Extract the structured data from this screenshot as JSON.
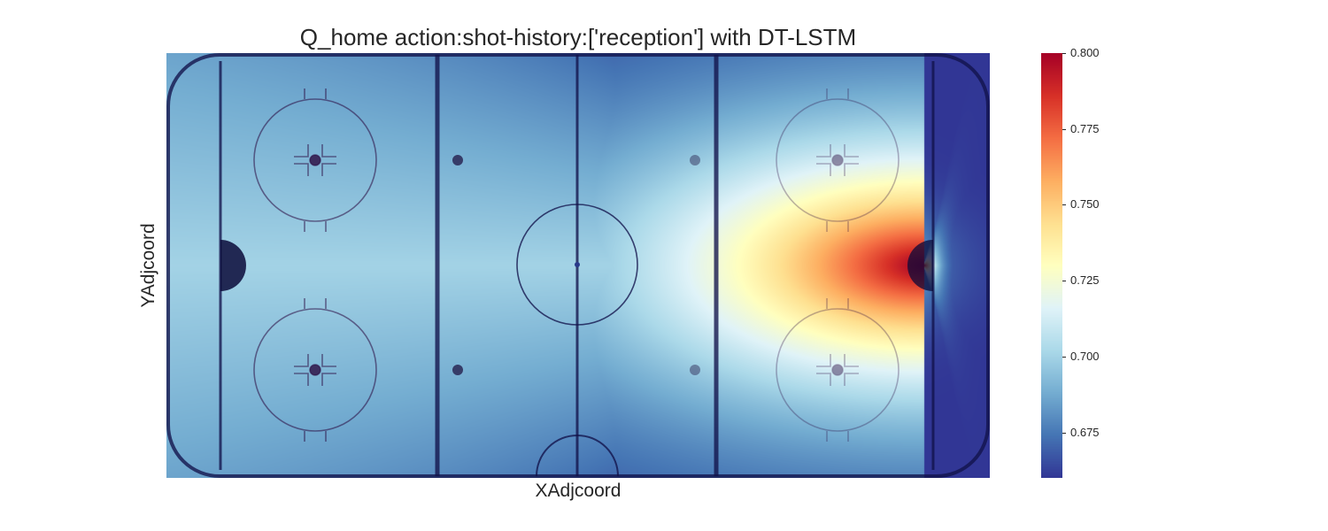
{
  "chart_data": {
    "type": "heatmap",
    "title": "Q_home action:shot-history:['reception'] with DT-LSTM",
    "xlabel": "XAdjcoord",
    "ylabel": "YAdjcoord",
    "colormap": "RdYlBu_r",
    "colors": {
      "low": "#313695",
      "mid": "#ffffbf",
      "high": "#a50026"
    },
    "color_range": [
      0.66,
      0.8
    ],
    "colorbar_ticks": [
      0.675,
      0.7,
      0.725,
      0.75,
      0.775,
      0.8
    ],
    "colorbar_tick_labels": [
      "0.675",
      "0.700",
      "0.725",
      "0.750",
      "0.775",
      "0.800"
    ],
    "x_range": [
      -100,
      100
    ],
    "y_range": [
      -42.5,
      42.5
    ],
    "peak": {
      "x": 84,
      "y": 0,
      "value": 0.8
    },
    "background": "rink-diagram",
    "grid": false,
    "legend": "colorbar-right"
  }
}
